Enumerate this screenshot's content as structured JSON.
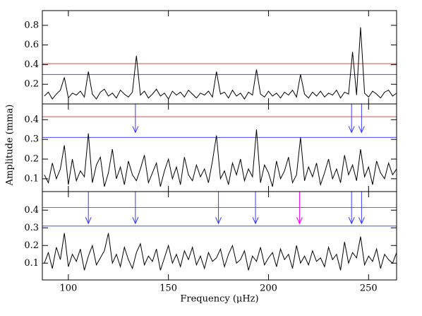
{
  "chart_data": {
    "type": "line",
    "y_label": "Amplitude (mma)",
    "x_label": "Frequency (μHz)",
    "xlim": [
      87,
      264
    ],
    "xticks": [
      100,
      150,
      200,
      250
    ],
    "x": [
      88,
      90,
      92,
      94,
      96,
      98,
      100,
      102,
      104,
      106,
      108,
      110,
      112,
      114,
      116,
      118,
      120,
      122,
      124,
      126,
      128,
      130,
      132,
      134,
      136,
      138,
      140,
      142,
      144,
      146,
      148,
      150,
      152,
      154,
      156,
      158,
      160,
      162,
      164,
      166,
      168,
      170,
      172,
      174,
      176,
      178,
      180,
      182,
      184,
      186,
      188,
      190,
      192,
      194,
      196,
      198,
      200,
      202,
      204,
      206,
      208,
      210,
      212,
      214,
      216,
      218,
      220,
      222,
      224,
      226,
      228,
      230,
      232,
      234,
      236,
      238,
      240,
      242,
      244,
      246,
      248,
      250,
      252,
      254,
      256,
      258,
      260,
      262,
      264
    ],
    "color": "#000000",
    "panels": [
      {
        "ylim": [
          0,
          0.95
        ],
        "yticks": [
          0.2,
          0.4,
          0.6,
          0.8
        ],
        "values": [
          0.08,
          0.12,
          0.05,
          0.1,
          0.14,
          0.27,
          0.06,
          0.11,
          0.09,
          0.13,
          0.07,
          0.33,
          0.1,
          0.05,
          0.12,
          0.15,
          0.08,
          0.11,
          0.06,
          0.14,
          0.1,
          0.07,
          0.12,
          0.49,
          0.09,
          0.13,
          0.06,
          0.1,
          0.15,
          0.08,
          0.11,
          0.05,
          0.13,
          0.09,
          0.12,
          0.07,
          0.14,
          0.1,
          0.06,
          0.11,
          0.09,
          0.13,
          0.07,
          0.33,
          0.1,
          0.12,
          0.06,
          0.14,
          0.08,
          0.11,
          0.05,
          0.12,
          0.09,
          0.35,
          0.1,
          0.07,
          0.13,
          0.08,
          0.11,
          0.06,
          0.12,
          0.09,
          0.14,
          0.07,
          0.3,
          0.1,
          0.06,
          0.12,
          0.08,
          0.13,
          0.07,
          0.11,
          0.09,
          0.14,
          0.06,
          0.12,
          0.1,
          0.53,
          0.09,
          0.78,
          0.11,
          0.07,
          0.13,
          0.1,
          0.06,
          0.12,
          0.14,
          0.08,
          0.11
        ],
        "hlines": [
          {
            "value": 0.41,
            "color": "#e04848"
          },
          {
            "value": 0.3,
            "color": "#4a4aff"
          }
        ],
        "arrows": []
      },
      {
        "ylim": [
          0.035,
          0.48
        ],
        "yticks": [
          0.1,
          0.2,
          0.3,
          0.4
        ],
        "values": [
          0.12,
          0.08,
          0.18,
          0.1,
          0.15,
          0.27,
          0.07,
          0.2,
          0.09,
          0.14,
          0.11,
          0.33,
          0.08,
          0.17,
          0.21,
          0.06,
          0.13,
          0.25,
          0.1,
          0.16,
          0.07,
          0.19,
          0.12,
          0.09,
          0.15,
          0.22,
          0.08,
          0.13,
          0.18,
          0.06,
          0.14,
          0.2,
          0.1,
          0.16,
          0.07,
          0.21,
          0.12,
          0.09,
          0.17,
          0.11,
          0.15,
          0.08,
          0.19,
          0.32,
          0.1,
          0.14,
          0.07,
          0.18,
          0.12,
          0.2,
          0.09,
          0.15,
          0.11,
          0.35,
          0.08,
          0.17,
          0.13,
          0.06,
          0.19,
          0.1,
          0.14,
          0.21,
          0.08,
          0.12,
          0.31,
          0.09,
          0.16,
          0.11,
          0.18,
          0.07,
          0.13,
          0.2,
          0.1,
          0.15,
          0.08,
          0.22,
          0.12,
          0.17,
          0.09,
          0.25,
          0.11,
          0.16,
          0.07,
          0.19,
          0.13,
          0.1,
          0.18,
          0.12,
          0.15
        ],
        "hlines": [
          {
            "value": 0.415,
            "color": "#e04848"
          },
          {
            "value": 0.31,
            "color": "#4a4aff"
          }
        ],
        "arrows": [
          {
            "x": 133.5,
            "to": 0.335,
            "color": "#3a3aff"
          },
          {
            "x": 241.5,
            "to": 0.335,
            "color": "#3a3aff"
          },
          {
            "x": 246.5,
            "to": 0.335,
            "color": "#3a3aff"
          }
        ]
      },
      {
        "ylim": [
          0.005,
          0.505
        ],
        "yticks": [
          0.1,
          0.2,
          0.3,
          0.4
        ],
        "values": [
          0.1,
          0.16,
          0.07,
          0.19,
          0.12,
          0.27,
          0.08,
          0.15,
          0.11,
          0.18,
          0.06,
          0.14,
          0.2,
          0.09,
          0.13,
          0.17,
          0.27,
          0.1,
          0.15,
          0.08,
          0.19,
          0.12,
          0.07,
          0.16,
          0.21,
          0.09,
          0.14,
          0.11,
          0.18,
          0.06,
          0.13,
          0.2,
          0.1,
          0.15,
          0.08,
          0.17,
          0.12,
          0.19,
          0.09,
          0.14,
          0.07,
          0.16,
          0.11,
          0.13,
          0.18,
          0.08,
          0.15,
          0.2,
          0.1,
          0.12,
          0.17,
          0.06,
          0.14,
          0.11,
          0.19,
          0.09,
          0.13,
          0.16,
          0.08,
          0.18,
          0.12,
          0.15,
          0.07,
          0.2,
          0.1,
          0.14,
          0.09,
          0.17,
          0.11,
          0.13,
          0.08,
          0.19,
          0.12,
          0.15,
          0.06,
          0.22,
          0.1,
          0.16,
          0.13,
          0.25,
          0.09,
          0.14,
          0.11,
          0.18,
          0.07,
          0.15,
          0.12,
          0.1,
          0.16
        ],
        "hlines": [
          {
            "value": 0.415,
            "color": "#e04848"
          },
          {
            "value": 0.31,
            "color": "#4a4aff"
          }
        ],
        "arrows": [
          {
            "x": 110,
            "to": 0.324,
            "color": "#3a3aff"
          },
          {
            "x": 133.5,
            "to": 0.324,
            "color": "#3a3aff"
          },
          {
            "x": 175,
            "to": 0.324,
            "color": "#3a3aff"
          },
          {
            "x": 193.5,
            "to": 0.324,
            "color": "#3a3aff"
          },
          {
            "x": 215.5,
            "to": 0.324,
            "color": "#ff00ff"
          },
          {
            "x": 241.5,
            "to": 0.324,
            "color": "#3a3aff"
          },
          {
            "x": 246.5,
            "to": 0.324,
            "color": "#3a3aff"
          }
        ]
      }
    ]
  }
}
